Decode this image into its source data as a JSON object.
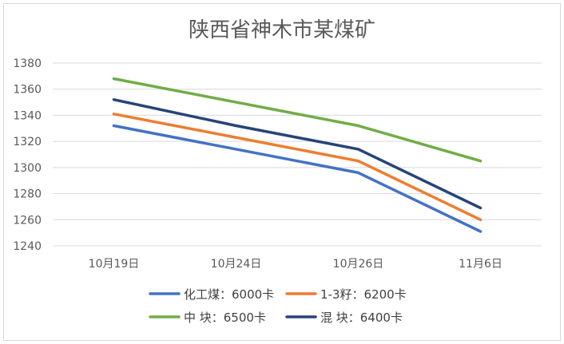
{
  "chart_data": {
    "type": "line",
    "title": "陕西省神木市某煤矿",
    "xlabel": "",
    "ylabel": "",
    "categories": [
      "10月19日",
      "10月24日",
      "10月26日",
      "11月6日"
    ],
    "ylim": [
      1240,
      1380
    ],
    "yticks": [
      1240,
      1260,
      1280,
      1300,
      1320,
      1340,
      1360,
      1380
    ],
    "grid": true,
    "legend_position": "bottom",
    "series": [
      {
        "name": "化工煤：6000卡",
        "color": "#4472C4",
        "values": [
          1332,
          1314,
          1296,
          1251
        ]
      },
      {
        "name": "1-3籽：6200卡",
        "color": "#ED7D31",
        "values": [
          1341,
          1323,
          1305,
          1260
        ]
      },
      {
        "name": "中 块：6500卡",
        "color": "#70AD47",
        "values": [
          1368,
          1350,
          1332,
          1305
        ]
      },
      {
        "name": "混 块：6400卡",
        "color": "#264478",
        "values": [
          1352,
          1332,
          1314,
          1269
        ]
      }
    ]
  }
}
